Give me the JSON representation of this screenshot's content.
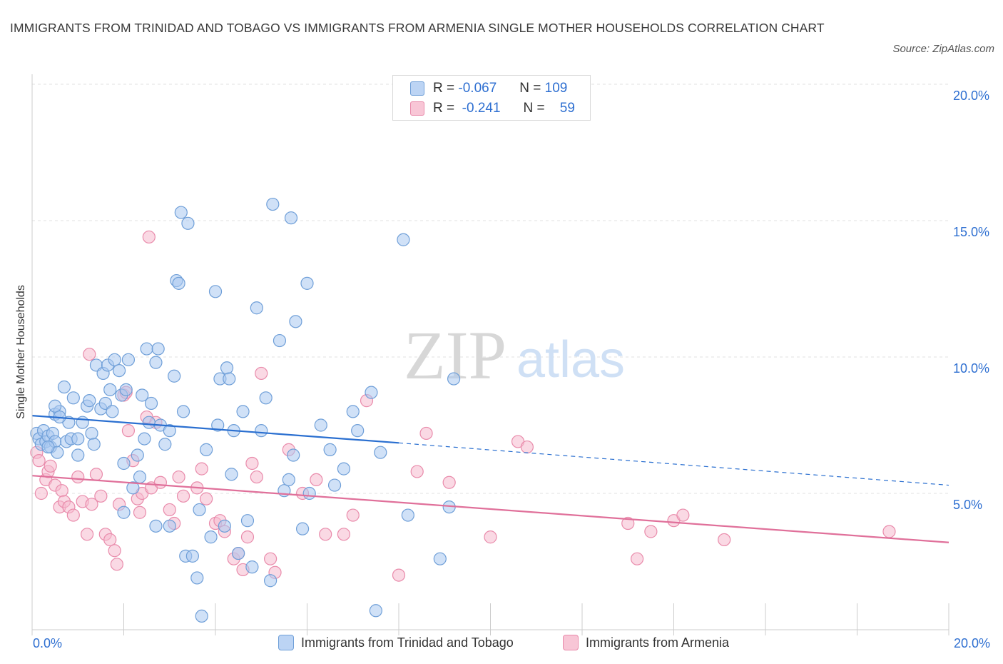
{
  "title": "IMMIGRANTS FROM TRINIDAD AND TOBAGO VS IMMIGRANTS FROM ARMENIA SINGLE MOTHER HOUSEHOLDS CORRELATION CHART",
  "source": "Source: ZipAtlas.com",
  "watermark": {
    "zip": "ZIP",
    "atlas": "atlas"
  },
  "legend_top": [
    {
      "r_label": "R =",
      "r_value": "-0.067",
      "n_label": "N =",
      "n_value": "109"
    },
    {
      "r_label": "R =",
      "r_value": "-0.241",
      "n_label": "N =",
      "n_value": "59"
    }
  ],
  "legend_bottom": [
    {
      "label": "Immigrants from Trinidad and Tobago"
    },
    {
      "label": "Immigrants from Armenia"
    }
  ],
  "colors": {
    "blue_fill": "#a9c8f0",
    "blue_stroke": "#6f9fd8",
    "blue_line": "#2a6fd0",
    "pink_fill": "#f6b9cd",
    "pink_stroke": "#e98bab",
    "pink_line": "#e0709a",
    "tick_text": "#2e6fd1",
    "grid": "#e2e2e2"
  },
  "chart_data": {
    "type": "scatter",
    "ylabel": "Single Mother Households",
    "xlabel": "",
    "xlim": [
      0,
      20
    ],
    "ylim": [
      0,
      20
    ],
    "y_ticks": [
      "5.0%",
      "10.0%",
      "15.0%",
      "20.0%"
    ],
    "x_tick_labels": [
      "0.0%",
      "20.0%"
    ],
    "grid": true,
    "legend_position": "top-center",
    "series": [
      {
        "name": "Immigrants from Trinidad and Tobago",
        "color": "blue",
        "trend": {
          "x0": 0.0,
          "y0": 7.85,
          "x1_solid": 8.0,
          "y1_solid": 6.85,
          "x1": 20.0,
          "y1": 5.3
        },
        "points": [
          [
            0.1,
            7.2
          ],
          [
            0.15,
            7.0
          ],
          [
            0.2,
            6.8
          ],
          [
            0.25,
            7.3
          ],
          [
            0.3,
            6.9
          ],
          [
            0.35,
            7.1
          ],
          [
            0.4,
            6.7
          ],
          [
            0.45,
            7.2
          ],
          [
            0.5,
            6.9
          ],
          [
            0.55,
            6.5
          ],
          [
            0.5,
            7.9
          ],
          [
            0.6,
            8.0
          ],
          [
            0.5,
            8.2
          ],
          [
            0.7,
            8.9
          ],
          [
            0.75,
            6.9
          ],
          [
            0.8,
            7.6
          ],
          [
            0.85,
            7.0
          ],
          [
            0.9,
            8.5
          ],
          [
            1.0,
            6.4
          ],
          [
            1.1,
            7.6
          ],
          [
            1.2,
            8.2
          ],
          [
            1.25,
            8.4
          ],
          [
            1.3,
            7.2
          ],
          [
            1.35,
            6.8
          ],
          [
            1.4,
            9.7
          ],
          [
            1.5,
            8.1
          ],
          [
            1.55,
            9.4
          ],
          [
            1.6,
            8.3
          ],
          [
            1.65,
            9.7
          ],
          [
            1.7,
            8.8
          ],
          [
            1.75,
            8.0
          ],
          [
            1.8,
            9.9
          ],
          [
            1.9,
            9.5
          ],
          [
            1.95,
            8.6
          ],
          [
            2.0,
            6.1
          ],
          [
            2.05,
            8.8
          ],
          [
            2.1,
            9.9
          ],
          [
            2.2,
            5.2
          ],
          [
            2.3,
            6.4
          ],
          [
            2.35,
            5.6
          ],
          [
            2.4,
            8.6
          ],
          [
            2.45,
            7.0
          ],
          [
            2.5,
            10.3
          ],
          [
            2.55,
            7.6
          ],
          [
            2.6,
            8.3
          ],
          [
            2.7,
            3.8
          ],
          [
            2.75,
            10.3
          ],
          [
            2.8,
            7.5
          ],
          [
            2.9,
            6.8
          ],
          [
            3.0,
            3.8
          ],
          [
            3.1,
            9.3
          ],
          [
            3.15,
            12.8
          ],
          [
            3.2,
            12.7
          ],
          [
            3.25,
            15.3
          ],
          [
            3.3,
            8.0
          ],
          [
            3.35,
            2.7
          ],
          [
            3.4,
            14.9
          ],
          [
            3.5,
            2.7
          ],
          [
            3.6,
            1.9
          ],
          [
            3.65,
            4.4
          ],
          [
            3.7,
            0.5
          ],
          [
            3.8,
            6.6
          ],
          [
            3.9,
            3.4
          ],
          [
            4.0,
            12.4
          ],
          [
            4.05,
            7.5
          ],
          [
            4.1,
            9.2
          ],
          [
            4.2,
            3.8
          ],
          [
            4.25,
            9.6
          ],
          [
            4.3,
            9.2
          ],
          [
            4.35,
            5.7
          ],
          [
            4.4,
            7.3
          ],
          [
            4.5,
            2.8
          ],
          [
            4.6,
            8.0
          ],
          [
            4.7,
            4.0
          ],
          [
            4.8,
            2.3
          ],
          [
            4.9,
            11.8
          ],
          [
            5.0,
            7.3
          ],
          [
            5.1,
            8.5
          ],
          [
            5.2,
            1.8
          ],
          [
            5.25,
            15.6
          ],
          [
            5.4,
            10.6
          ],
          [
            5.5,
            5.1
          ],
          [
            5.6,
            5.5
          ],
          [
            5.65,
            15.1
          ],
          [
            5.7,
            6.4
          ],
          [
            5.75,
            11.3
          ],
          [
            5.9,
            3.7
          ],
          [
            6.0,
            12.7
          ],
          [
            6.05,
            5.0
          ],
          [
            6.3,
            7.5
          ],
          [
            6.5,
            6.6
          ],
          [
            6.6,
            5.3
          ],
          [
            6.8,
            5.9
          ],
          [
            7.0,
            8.0
          ],
          [
            7.1,
            7.3
          ],
          [
            7.4,
            8.7
          ],
          [
            7.5,
            0.7
          ],
          [
            7.6,
            6.5
          ],
          [
            8.1,
            14.3
          ],
          [
            8.2,
            4.2
          ],
          [
            8.9,
            2.6
          ],
          [
            9.1,
            4.5
          ],
          [
            9.2,
            9.2
          ],
          [
            0.6,
            7.8
          ],
          [
            2.0,
            4.3
          ],
          [
            3.0,
            7.3
          ],
          [
            1.0,
            7.0
          ],
          [
            0.35,
            6.7
          ],
          [
            2.7,
            9.8
          ]
        ]
      },
      {
        "name": "Immigrants from Armenia",
        "color": "pink",
        "trend": {
          "x0": 0.0,
          "y0": 5.65,
          "x1": 20.0,
          "y1": 3.2
        },
        "points": [
          [
            0.1,
            6.5
          ],
          [
            0.15,
            6.2
          ],
          [
            0.2,
            5.0
          ],
          [
            0.3,
            5.5
          ],
          [
            0.35,
            5.8
          ],
          [
            0.4,
            6.0
          ],
          [
            0.5,
            5.3
          ],
          [
            0.6,
            4.5
          ],
          [
            0.65,
            5.1
          ],
          [
            0.7,
            4.7
          ],
          [
            0.8,
            4.5
          ],
          [
            0.9,
            4.2
          ],
          [
            1.0,
            5.6
          ],
          [
            1.1,
            4.7
          ],
          [
            1.2,
            3.5
          ],
          [
            1.25,
            10.1
          ],
          [
            1.3,
            4.6
          ],
          [
            1.4,
            5.7
          ],
          [
            1.5,
            4.9
          ],
          [
            1.6,
            3.5
          ],
          [
            1.7,
            3.3
          ],
          [
            1.8,
            2.9
          ],
          [
            1.85,
            2.4
          ],
          [
            1.9,
            4.6
          ],
          [
            2.0,
            8.6
          ],
          [
            2.05,
            8.7
          ],
          [
            2.1,
            7.3
          ],
          [
            2.2,
            6.2
          ],
          [
            2.3,
            4.8
          ],
          [
            2.35,
            4.3
          ],
          [
            2.4,
            5.0
          ],
          [
            2.5,
            7.8
          ],
          [
            2.55,
            14.4
          ],
          [
            2.6,
            5.2
          ],
          [
            2.7,
            7.6
          ],
          [
            2.8,
            5.4
          ],
          [
            3.0,
            4.4
          ],
          [
            3.1,
            3.9
          ],
          [
            3.2,
            5.6
          ],
          [
            3.3,
            4.9
          ],
          [
            3.6,
            5.2
          ],
          [
            3.7,
            5.9
          ],
          [
            3.8,
            4.8
          ],
          [
            4.0,
            3.9
          ],
          [
            4.1,
            4.0
          ],
          [
            4.2,
            3.6
          ],
          [
            4.4,
            2.6
          ],
          [
            4.5,
            2.8
          ],
          [
            4.6,
            2.2
          ],
          [
            4.7,
            3.4
          ],
          [
            4.8,
            6.1
          ],
          [
            4.9,
            5.6
          ],
          [
            5.0,
            9.4
          ],
          [
            5.2,
            2.6
          ],
          [
            5.3,
            2.1
          ],
          [
            5.6,
            6.6
          ],
          [
            5.9,
            5.0
          ],
          [
            6.2,
            5.5
          ],
          [
            6.4,
            3.5
          ]
        ]
      }
    ],
    "pink_extra_points": [
      [
        6.8,
        3.5
      ],
      [
        7.0,
        4.2
      ],
      [
        7.3,
        8.4
      ],
      [
        8.0,
        2.0
      ],
      [
        8.4,
        5.8
      ],
      [
        8.6,
        7.2
      ],
      [
        9.1,
        5.4
      ],
      [
        10.0,
        3.4
      ],
      [
        10.6,
        6.9
      ],
      [
        10.8,
        6.7
      ],
      [
        13.0,
        3.9
      ],
      [
        13.2,
        2.6
      ],
      [
        13.5,
        3.6
      ],
      [
        14.0,
        4.0
      ],
      [
        14.2,
        4.2
      ],
      [
        15.1,
        3.3
      ],
      [
        18.7,
        3.6
      ]
    ]
  }
}
